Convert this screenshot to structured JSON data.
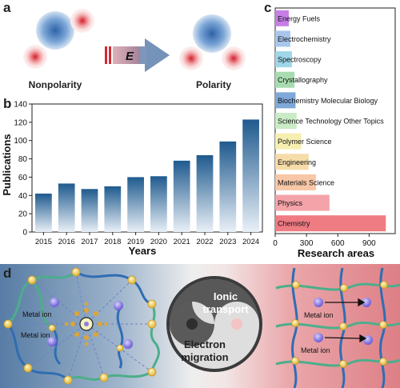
{
  "panels": {
    "a": "a",
    "b": "b",
    "c": "c",
    "d": "d"
  },
  "panel_a": {
    "left_label": "Nonpolarity",
    "right_label": "Polarity",
    "field_symbol": "E",
    "colors": {
      "blue": "#3a78c0",
      "red": "#d8343c",
      "arrow": "#7d9fc6"
    }
  },
  "panel_d": {
    "center_top": [
      "Ionic",
      "transport"
    ],
    "center_bottom": [
      "Electron",
      "migration"
    ],
    "metal_ion_label": "Metal ion",
    "left_labels": [
      "Metal ion",
      "Metal ion"
    ],
    "right_labels": [
      "Metal ion",
      "Metal ion"
    ],
    "colors": {
      "left_bg": "#5a7fa8",
      "right_bg": "#e08a8f",
      "chain_green": "#4cae8a",
      "chain_blue": "#2f6db3",
      "node": "#f5d66b",
      "ion": "#8f7fe0"
    }
  },
  "chart_data": [
    {
      "type": "bar",
      "panel": "b",
      "categories": [
        "2015",
        "2016",
        "2017",
        "2018",
        "2019",
        "2020",
        "2021",
        "2022",
        "2023",
        "2024"
      ],
      "values": [
        42,
        53,
        47,
        50,
        60,
        61,
        78,
        84,
        99,
        123
      ],
      "xlabel": "Years",
      "ylabel": "Publications",
      "ylim": [
        0,
        140
      ],
      "yticks": [
        0,
        20,
        40,
        60,
        80,
        100,
        120,
        140
      ],
      "bar_color_top": "#215b8f",
      "bar_color_bottom": "#e6eef6"
    },
    {
      "type": "bar",
      "orientation": "horizontal",
      "panel": "c",
      "categories": [
        "Energy Fuels",
        "Electrochemistry",
        "Spectroscopy",
        "Crystallography",
        "Biochemistry Molecular Biology",
        "Science Technology Other Topics",
        "Polymer Science",
        "Engineering",
        "Materials Science",
        "Physics",
        "Chemistry"
      ],
      "values": [
        130,
        145,
        160,
        185,
        195,
        205,
        250,
        320,
        390,
        520,
        1060
      ],
      "xlabel": "Research areas",
      "xlim": [
        0,
        1150
      ],
      "xticks": [
        0,
        300,
        600,
        900
      ],
      "colors": [
        "#c77fe6",
        "#a8c6ec",
        "#9fd6e8",
        "#a8dcb0",
        "#7fa8d8",
        "#c9ecc6",
        "#f6efb0",
        "#f6dca8",
        "#f7c7a6",
        "#f4a3a8",
        "#ef7c83"
      ]
    }
  ]
}
